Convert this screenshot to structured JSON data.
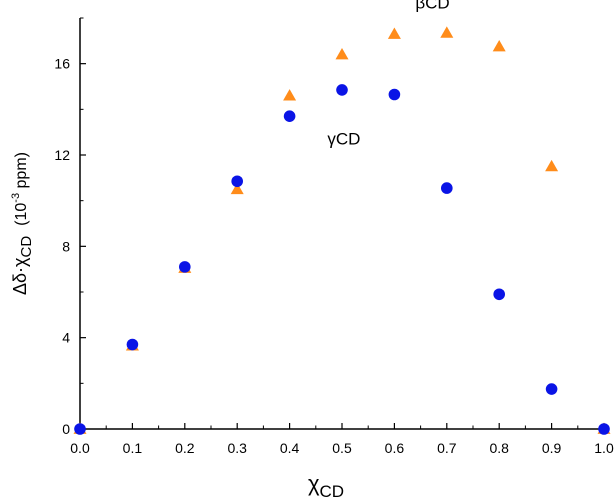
{
  "chart_data": {
    "type": "scatter",
    "title": "",
    "xlabel": "χCD",
    "xlabel_main": "χ",
    "xlabel_sub": "CD",
    "ylabel": "Δδ·χCD (10⁻³ ppm)",
    "ylabel_main": "Δδ·χ",
    "ylabel_sub": "CD",
    "ylabel_unit_prefix": "(10",
    "ylabel_unit_exp": "-3",
    "ylabel_unit_suffix": " ppm)",
    "xlim": [
      0.0,
      1.0
    ],
    "ylim": [
      0,
      18
    ],
    "xticks": [
      0.0,
      0.1,
      0.2,
      0.3,
      0.4,
      0.5,
      0.6,
      0.7,
      0.8,
      0.9,
      1.0
    ],
    "xtick_labels": [
      "0.0",
      "0.1",
      "0.2",
      "0.3",
      "0.4",
      "0.5",
      "0.6",
      "0.7",
      "0.8",
      "0.9",
      "1.0"
    ],
    "yticks": [
      0,
      4,
      8,
      12,
      16
    ],
    "ytick_labels": [
      "0",
      "4",
      "8",
      "12",
      "16"
    ],
    "grid": false,
    "series": [
      {
        "name": "γCD",
        "label_greek": "γ",
        "label_rest": "CD",
        "marker": "circle",
        "color": "#0a14e6",
        "x": [
          0.0,
          0.1,
          0.2,
          0.3,
          0.4,
          0.5,
          0.6,
          0.7,
          0.8,
          0.9,
          1.0
        ],
        "y": [
          0.0,
          3.7,
          7.1,
          10.85,
          13.7,
          14.85,
          14.65,
          10.55,
          5.9,
          1.75,
          0.0
        ]
      },
      {
        "name": "βCD",
        "label_greek": "β",
        "label_rest": "CD",
        "marker": "triangle",
        "color": "#ff8c1a",
        "x": [
          0.0,
          0.1,
          0.2,
          0.3,
          0.4,
          0.5,
          0.6,
          0.7,
          0.8,
          0.9,
          1.0
        ],
        "y": [
          0.0,
          3.65,
          7.05,
          10.5,
          14.6,
          16.4,
          17.3,
          17.35,
          16.75,
          11.5,
          0.0
        ]
      }
    ]
  }
}
